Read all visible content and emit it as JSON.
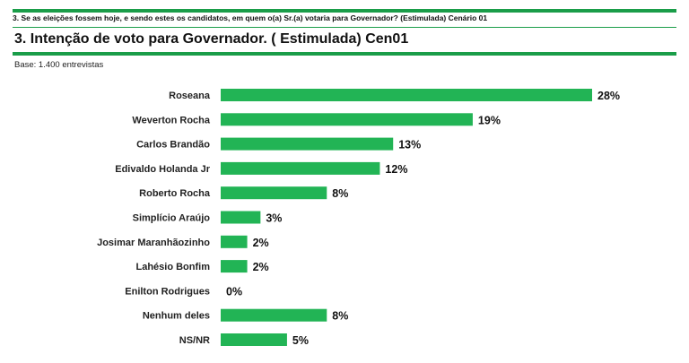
{
  "header": {
    "question": "3. Se as eleições fossem hoje, e sendo estes os candidatos, em quem o(a) Sr.(a) votaria para Governador? (Estimulada) Cenário 01",
    "title": "3. Intenção de voto para Governador. ( Estimulada) Cen01",
    "base": "Base: 1.400 entrevistas"
  },
  "colors": {
    "bar": "#22b455",
    "rule": "#1a9d49"
  },
  "chart_data": {
    "type": "bar",
    "orientation": "horizontal",
    "categories": [
      "Roseana",
      "Weverton Rocha",
      "Carlos Brandão",
      "Edivaldo Holanda Jr",
      "Roberto Rocha",
      "Simplício Araújo",
      "Josimar Maranhãozinho",
      "Lahésio Bonfim",
      "Enilton Rodrigues",
      "Nenhum deles",
      "NS/NR"
    ],
    "values": [
      28,
      19,
      13,
      12,
      8,
      3,
      2,
      2,
      0,
      8,
      5
    ],
    "value_labels": [
      "28%",
      "19%",
      "13%",
      "12%",
      "8%",
      "3%",
      "2%",
      "2%",
      "0%",
      "8%",
      "5%"
    ],
    "unit": "%",
    "xlim": [
      0,
      28
    ],
    "grid": false,
    "legend": "none"
  }
}
